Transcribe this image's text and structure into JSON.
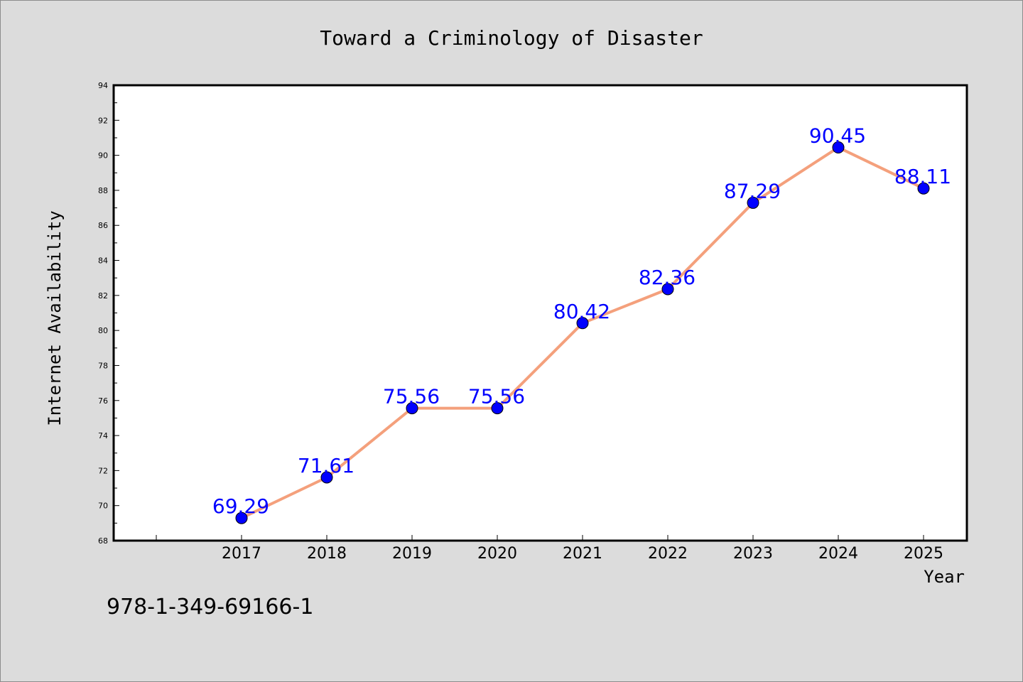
{
  "colors": {
    "background": "#dcdcdc",
    "plot_background": "#ffffff",
    "line": "#f4a07c",
    "marker": "#0000ff",
    "data_label": "#0000ff",
    "axis": "#000000"
  },
  "isbn": "978-1-349-69166-1",
  "chart_data": {
    "type": "line",
    "title": "Toward a Criminology of Disaster",
    "xlabel": "Year",
    "ylabel": "Internet Availability",
    "x": [
      "2017",
      "2018",
      "2019",
      "2020",
      "2021",
      "2022",
      "2023",
      "2024",
      "2025"
    ],
    "series": [
      {
        "values": [
          69.29,
          71.61,
          75.56,
          75.56,
          80.42,
          82.36,
          87.29,
          90.45,
          88.11
        ],
        "data_labels": [
          "69.29",
          "71.61",
          "75.56",
          "75.56",
          "80.42",
          "82.36",
          "87.29",
          "90.45",
          "88.11"
        ]
      }
    ],
    "ylim": [
      68,
      94
    ],
    "yticks": [
      "68",
      "70",
      "72",
      "74",
      "76",
      "78",
      "80",
      "82",
      "84",
      "86",
      "88",
      "90",
      "92",
      "94"
    ],
    "grid": false,
    "legend": "none"
  }
}
